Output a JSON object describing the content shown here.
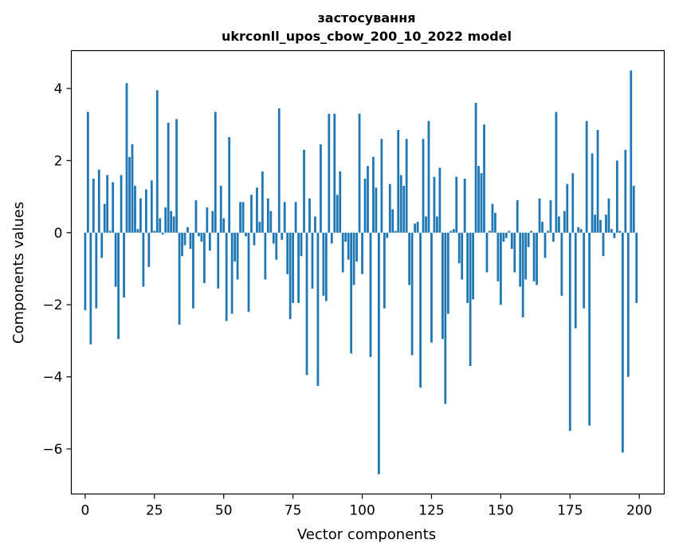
{
  "chart_data": {
    "type": "bar",
    "title": "застосування",
    "subtitle": "ukrconll_upos_cbow_200_10_2022 model",
    "xlabel": "Vector components",
    "ylabel": "Components values",
    "xlim": [
      -5,
      209
    ],
    "ylim": [
      -7.25,
      5.05
    ],
    "xticks": [
      0,
      25,
      50,
      75,
      100,
      125,
      150,
      175,
      200
    ],
    "yticks": [
      -6,
      -4,
      -2,
      0,
      2,
      4
    ],
    "xtick_labels": [
      "0",
      "25",
      "50",
      "75",
      "100",
      "125",
      "150",
      "175",
      "200"
    ],
    "ytick_labels": [
      "−6",
      "−4",
      "−2",
      "0",
      "2",
      "4"
    ],
    "grid": false,
    "color": "#1f77b4",
    "x": [
      0,
      1,
      2,
      3,
      4,
      5,
      6,
      7,
      8,
      9,
      10,
      11,
      12,
      13,
      14,
      15,
      16,
      17,
      18,
      19,
      20,
      21,
      22,
      23,
      24,
      25,
      26,
      27,
      28,
      29,
      30,
      31,
      32,
      33,
      34,
      35,
      36,
      37,
      38,
      39,
      40,
      41,
      42,
      43,
      44,
      45,
      46,
      47,
      48,
      49,
      50,
      51,
      52,
      53,
      54,
      55,
      56,
      57,
      58,
      59,
      60,
      61,
      62,
      63,
      64,
      65,
      66,
      67,
      68,
      69,
      70,
      71,
      72,
      73,
      74,
      75,
      76,
      77,
      78,
      79,
      80,
      81,
      82,
      83,
      84,
      85,
      86,
      87,
      88,
      89,
      90,
      91,
      92,
      93,
      94,
      95,
      96,
      97,
      98,
      99,
      100,
      101,
      102,
      103,
      104,
      105,
      106,
      107,
      108,
      109,
      110,
      111,
      112,
      113,
      114,
      115,
      116,
      117,
      118,
      119,
      120,
      121,
      122,
      123,
      124,
      125,
      126,
      127,
      128,
      129,
      130,
      131,
      132,
      133,
      134,
      135,
      136,
      137,
      138,
      139,
      140,
      141,
      142,
      143,
      144,
      145,
      146,
      147,
      148,
      149,
      150,
      151,
      152,
      153,
      154,
      155,
      156,
      157,
      158,
      159,
      160,
      161,
      162,
      163,
      164,
      165,
      166,
      167,
      168,
      169,
      170,
      171,
      172,
      173,
      174,
      175,
      176,
      177,
      178,
      179,
      180,
      181,
      182,
      183,
      184,
      185,
      186,
      187,
      188,
      189,
      190,
      191,
      192,
      193,
      194,
      195,
      196,
      197,
      198,
      199
    ],
    "values": [
      -2.15,
      3.35,
      -3.1,
      1.5,
      -2.1,
      1.75,
      -0.7,
      0.8,
      1.6,
      0.05,
      1.4,
      -1.5,
      -2.95,
      1.6,
      -1.8,
      4.15,
      2.1,
      2.45,
      1.3,
      0.1,
      0.95,
      -1.5,
      1.2,
      -0.95,
      1.45,
      0.05,
      3.95,
      0.4,
      -0.05,
      0.7,
      3.05,
      0.6,
      0.45,
      3.15,
      -2.55,
      -0.65,
      -0.35,
      0.15,
      -0.45,
      -2.1,
      0.9,
      -0.1,
      -0.25,
      -1.4,
      0.7,
      -0.5,
      0.6,
      3.35,
      -1.55,
      1.3,
      0.4,
      -2.45,
      2.65,
      -2.25,
      -0.8,
      -1.3,
      0.85,
      0.85,
      -0.1,
      -2.2,
      1.05,
      -0.35,
      1.25,
      0.3,
      1.7,
      -1.3,
      0.95,
      0.6,
      -0.3,
      -0.75,
      3.45,
      -0.2,
      0.85,
      -1.15,
      -2.4,
      -1.95,
      0.85,
      -1.95,
      -0.65,
      2.3,
      -3.95,
      0.95,
      -1.55,
      0.45,
      -4.25,
      2.45,
      -1.75,
      -1.9,
      3.3,
      -0.3,
      3.3,
      1.05,
      1.7,
      -1.1,
      -0.25,
      -0.75,
      -3.35,
      -1.45,
      -0.8,
      3.3,
      -1.15,
      1.5,
      1.85,
      -3.45,
      2.1,
      1.25,
      -6.7,
      2.6,
      -2.1,
      -0.15,
      1.35,
      0.65,
      0.05,
      2.85,
      1.6,
      1.3,
      2.6,
      -1.45,
      -3.4,
      0.25,
      0.3,
      -4.3,
      2.6,
      0.45,
      3.1,
      -3.05,
      1.55,
      0.45,
      1.8,
      -2.95,
      -4.75,
      -2.25,
      0.05,
      0.1,
      1.55,
      -0.85,
      -1.3,
      1.5,
      -1.95,
      -3.7,
      -1.85,
      3.6,
      1.85,
      1.65,
      3.0,
      -1.1,
      0.05,
      0.8,
      0.55,
      -1.35,
      -2.0,
      -0.25,
      -0.15,
      0.05,
      -0.45,
      -1.1,
      0.9,
      -1.5,
      -2.35,
      -1.3,
      -0.4,
      0.05,
      -1.35,
      -1.45,
      0.95,
      0.3,
      -0.7,
      0.05,
      0.9,
      -0.25,
      3.35,
      0.45,
      -1.75,
      0.6,
      1.35,
      -5.5,
      1.65,
      -2.65,
      0.15,
      0.1,
      -2.1,
      3.1,
      -5.35,
      2.2,
      0.5,
      2.85,
      0.35,
      -0.65,
      0.5,
      0.95,
      0.1,
      -0.15,
      2.0,
      0.05,
      -6.1,
      2.3,
      -4.0,
      4.5,
      1.3,
      -1.95
    ]
  }
}
